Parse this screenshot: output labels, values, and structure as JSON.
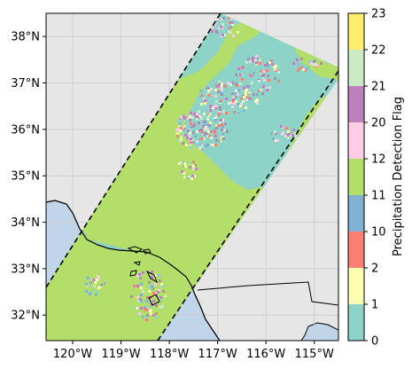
{
  "map": {
    "lat_ticks": [
      "38°N",
      "37°N",
      "36°N",
      "35°N",
      "34°N",
      "33°N",
      "32°N"
    ],
    "lon_ticks": [
      "120°W",
      "119°W",
      "118°W",
      "117°W",
      "116°W",
      "115°W"
    ],
    "lat_range": [
      31.45,
      38.5
    ],
    "lon_range": [
      -120.55,
      -114.5
    ],
    "grid": true,
    "swath_edges": "dashed black lines",
    "colors": {
      "ocean": "#c0d4ea",
      "land": "#e6e6e6",
      "grid": "#cfcfcf"
    }
  },
  "colorbar": {
    "label": "Precipitation Detection Flag",
    "tick_labels": [
      "0",
      "1",
      "2",
      "10",
      "11",
      "12",
      "20",
      "21",
      "22",
      "23"
    ],
    "segments": [
      {
        "color": "#8dd3c7"
      },
      {
        "color": "#ffffb3"
      },
      {
        "color": "#fb8072"
      },
      {
        "color": "#80b1d3"
      },
      {
        "color": "#b3de69"
      },
      {
        "color": "#fccde5"
      },
      {
        "color": "#bc80bd"
      },
      {
        "color": "#ccebc5"
      },
      {
        "color": "#ffed6f"
      }
    ]
  }
}
